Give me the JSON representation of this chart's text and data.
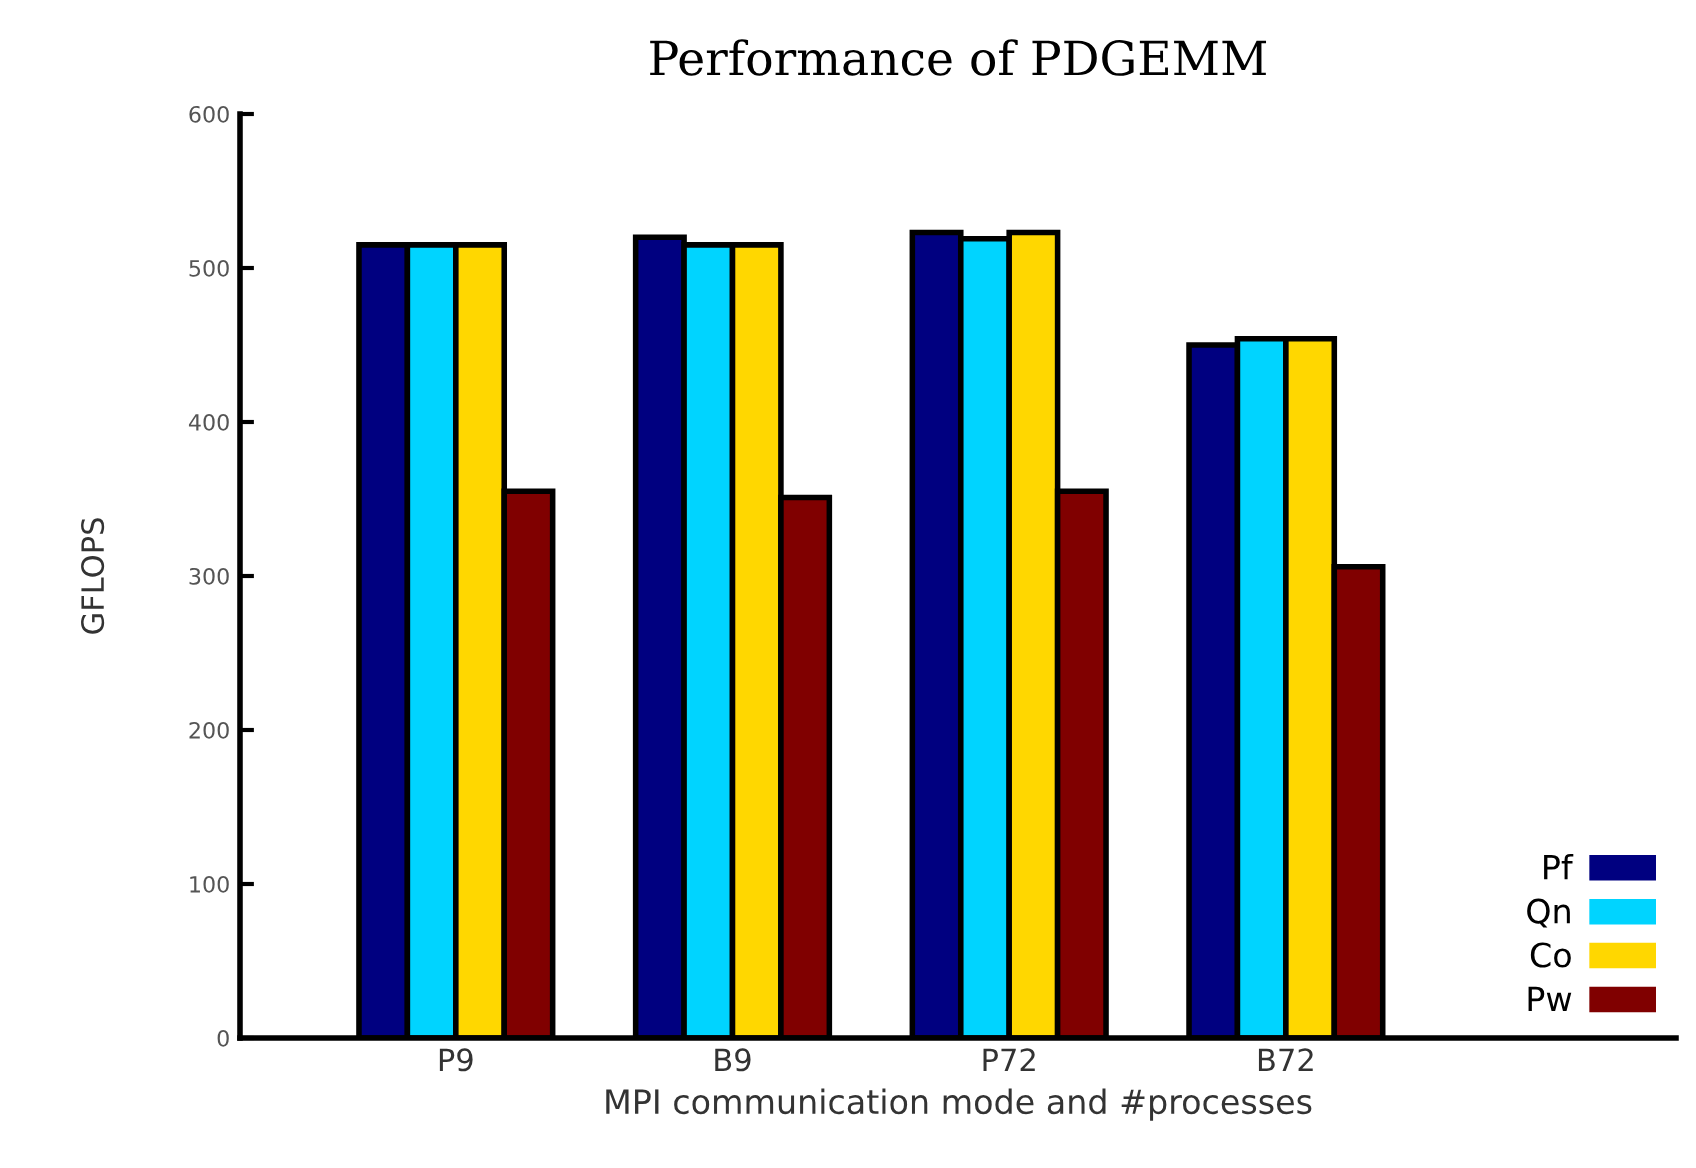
{
  "chart_data": {
    "type": "bar",
    "title": "Performance of PDGEMM",
    "xlabel": "MPI communication mode and #processes",
    "ylabel": "GFLOPS",
    "categories": [
      "P9",
      "B9",
      "P72",
      "B72"
    ],
    "series": [
      {
        "name": "Pf",
        "color": "#000080",
        "values": [
          515,
          520,
          523,
          450
        ]
      },
      {
        "name": "Qn",
        "color": "#00d4ff",
        "values": [
          515,
          515,
          519,
          454
        ]
      },
      {
        "name": "Co",
        "color": "#ffd700",
        "values": [
          515,
          515,
          523,
          454
        ]
      },
      {
        "name": "Pw",
        "color": "#800000",
        "values": [
          355,
          351,
          355,
          306
        ]
      }
    ],
    "ylim": [
      0,
      600
    ],
    "yticks": [
      0,
      100,
      200,
      300,
      400,
      500,
      600
    ],
    "grid": false,
    "legend": "bottom right"
  }
}
